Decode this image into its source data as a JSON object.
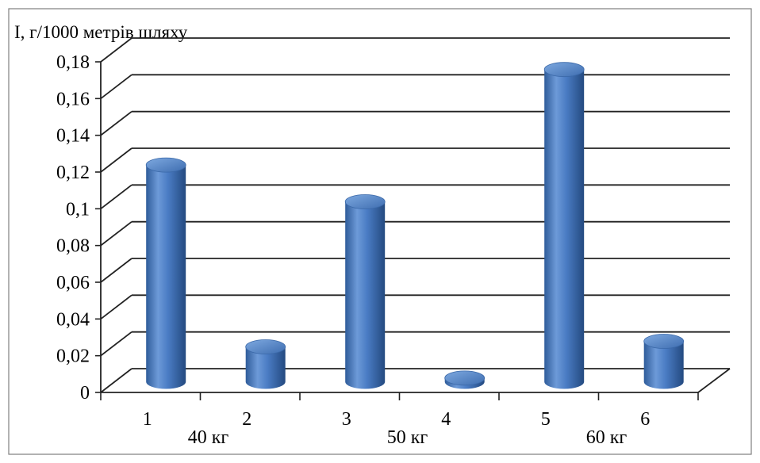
{
  "chart_data": {
    "type": "bar",
    "title": "",
    "ylabel": "I, г/1000 метрів шляху",
    "xlabel": "",
    "categories": [
      "1",
      "2",
      "3",
      "4",
      "5",
      "6"
    ],
    "groups": [
      "40 кг",
      "50 кг",
      "60 кг"
    ],
    "values": [
      0.118,
      0.019,
      0.098,
      0.002,
      0.17,
      0.022
    ],
    "ylim": [
      0,
      0.18
    ],
    "yticks": [
      "0",
      "0,02",
      "0,04",
      "0,06",
      "0,08",
      "0,1",
      "0,12",
      "0,14",
      "0,16",
      "0,18"
    ],
    "grid": true,
    "legend": "none",
    "bar_color": "#4a7cc4"
  }
}
